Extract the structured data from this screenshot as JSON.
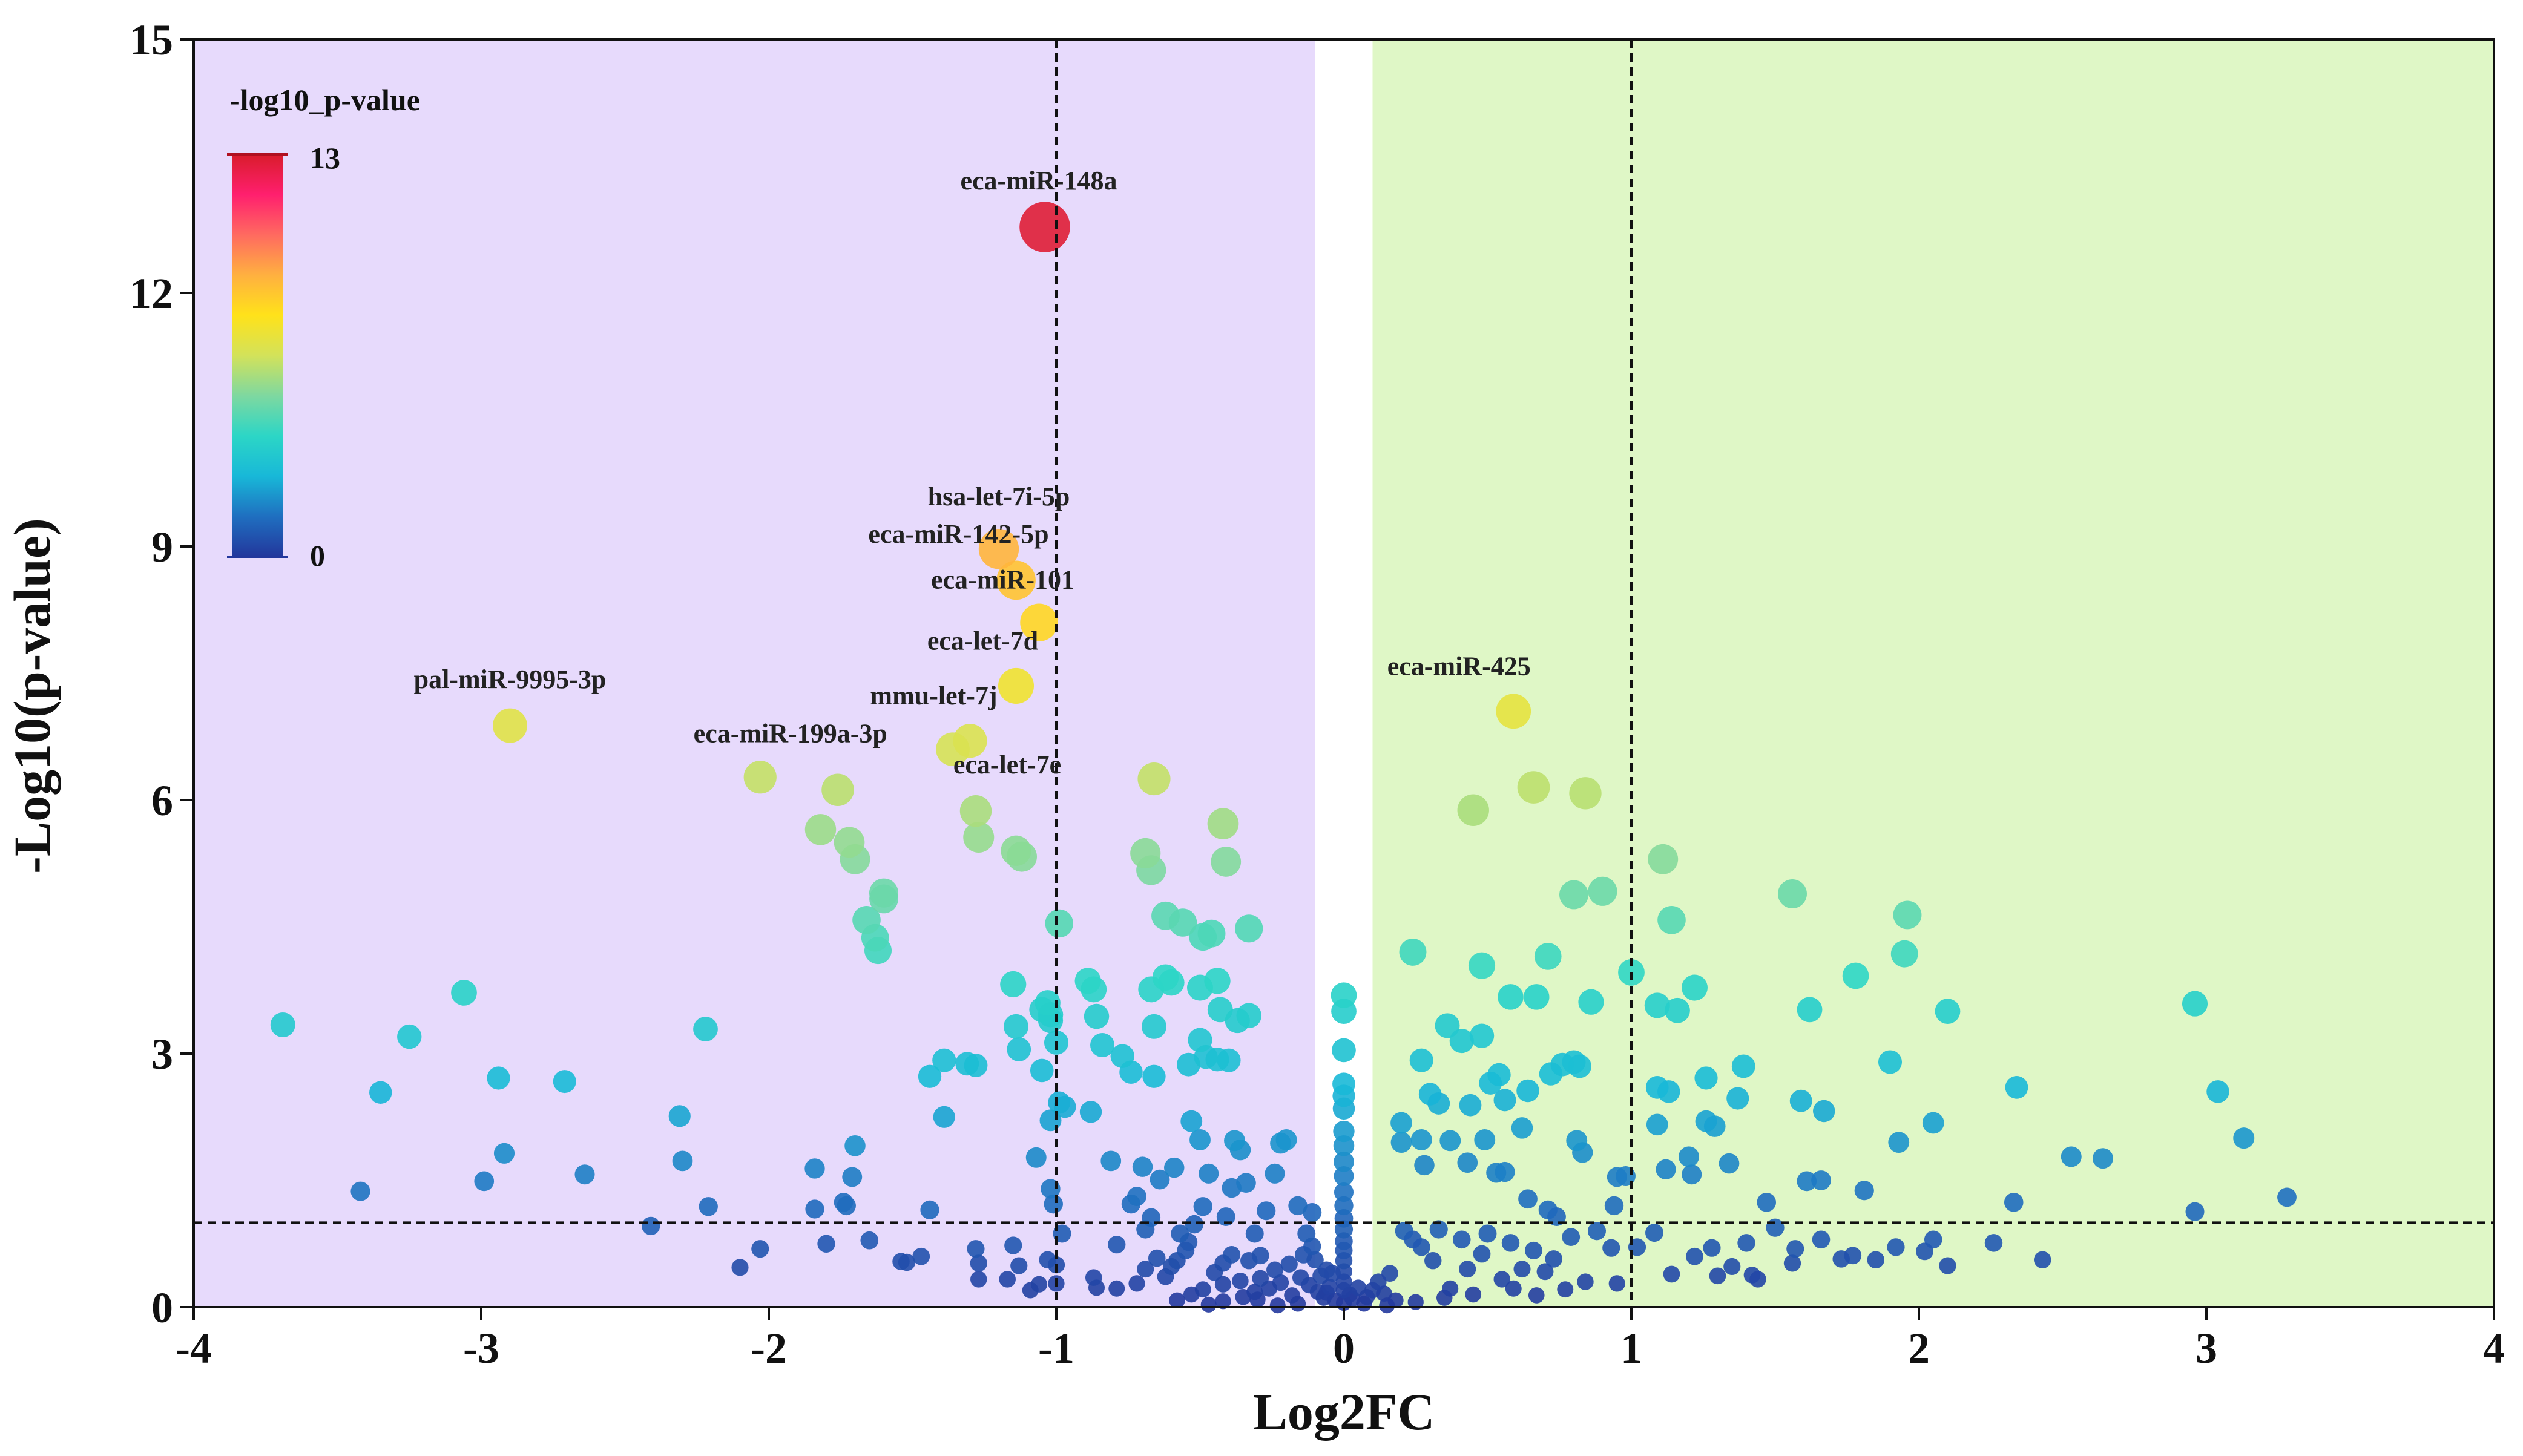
{
  "chart_data": {
    "type": "scatter",
    "title": "",
    "xlabel": "Log2FC",
    "ylabel": "-Log10(p-value)",
    "xlim": [
      -4,
      4
    ],
    "ylim": [
      0,
      15
    ],
    "xticks": [
      -4,
      -3,
      -2,
      -1,
      0,
      1,
      2,
      3,
      4
    ],
    "yticks": [
      0,
      3,
      6,
      9,
      12,
      15
    ],
    "xtick_labels": [
      "-4",
      "-3",
      "-2",
      "-1",
      "0",
      "1",
      "2",
      "3",
      "4"
    ],
    "ytick_labels": [
      "0",
      "3",
      "6",
      "9",
      "12",
      "15"
    ],
    "grid": false,
    "regions": [
      {
        "name": "down",
        "x_range": [
          -4,
          -0.1
        ],
        "color": "#e7dafc"
      },
      {
        "name": "up",
        "x_range": [
          0.1,
          4
        ],
        "color": "#dff7c6"
      }
    ],
    "threshold_lines": {
      "x": [
        -1,
        1
      ],
      "y": 1
    },
    "colorbar": {
      "title": "-log10_p-value",
      "min": 0,
      "max": 13,
      "min_label": "0",
      "max_label": "13",
      "colors": [
        "#23379c",
        "#1f6fc0",
        "#18b8d8",
        "#2cd6c6",
        "#7ed8a0",
        "#d3e25a",
        "#ffe21a",
        "#ffb040",
        "#ff6a60",
        "#ff1f6e",
        "#d91c2b"
      ]
    },
    "labeled_points": [
      {
        "label": "eca-miR-148a",
        "x": -1.04,
        "y": 12.78
      },
      {
        "label": "hsa-let-7i-5p",
        "x": -1.2,
        "y": 8.97
      },
      {
        "label": "eca-miR-142-5p",
        "x": -1.14,
        "y": 8.6
      },
      {
        "label": "eca-miR-101",
        "x": -1.06,
        "y": 8.1
      },
      {
        "label": "eca-let-7d",
        "x": -1.14,
        "y": 7.35
      },
      {
        "label": "mmu-let-7j",
        "x": -1.3,
        "y": 6.7
      },
      {
        "label": "eca-let-7e",
        "x": -1.36,
        "y": 6.6
      },
      {
        "label": "pal-miR-9995-3p",
        "x": -2.9,
        "y": 6.88
      },
      {
        "label": "eca-miR-199a-3p",
        "x": -2.03,
        "y": 6.27
      },
      {
        "label": "eca-miR-425",
        "x": 0.59,
        "y": 7.05
      }
    ],
    "points": [
      [
        -1.76,
        6.12
      ],
      [
        -1.82,
        5.65
      ],
      [
        -1.72,
        5.5
      ],
      [
        -1.7,
        5.3
      ],
      [
        -1.6,
        4.9
      ],
      [
        -1.6,
        4.83
      ],
      [
        -1.66,
        4.58
      ],
      [
        -1.63,
        4.37
      ],
      [
        -1.62,
        4.22
      ],
      [
        -1.28,
        5.87
      ],
      [
        -1.27,
        5.56
      ],
      [
        -1.14,
        5.4
      ],
      [
        -1.12,
        5.33
      ],
      [
        -0.99,
        4.54
      ],
      [
        -0.66,
        6.25
      ],
      [
        -0.42,
        5.72
      ],
      [
        -0.69,
        5.37
      ],
      [
        -0.67,
        5.17
      ],
      [
        -0.41,
        5.27
      ],
      [
        -0.62,
        4.63
      ],
      [
        -0.56,
        4.55
      ],
      [
        -0.49,
        4.38
      ],
      [
        -0.46,
        4.42
      ],
      [
        -0.33,
        4.48
      ],
      [
        0.45,
        5.88
      ],
      [
        0.66,
        6.15
      ],
      [
        0.84,
        6.08
      ],
      [
        1.11,
        5.3
      ],
      [
        0.8,
        4.88
      ],
      [
        0.9,
        4.92
      ],
      [
        1.14,
        4.58
      ],
      [
        1.56,
        4.89
      ],
      [
        1.96,
        4.64
      ],
      [
        0.24,
        4.2
      ],
      [
        0.48,
        4.04
      ],
      [
        0.71,
        4.15
      ],
      [
        1.95,
        4.18
      ],
      [
        -3.69,
        3.34
      ],
      [
        -3.06,
        3.72
      ],
      [
        -3.25,
        3.2
      ],
      [
        -3.35,
        2.54
      ],
      [
        -2.94,
        2.71
      ],
      [
        -2.71,
        2.67
      ],
      [
        -2.22,
        3.29
      ],
      [
        -2.92,
        1.82
      ],
      [
        -2.99,
        1.49
      ],
      [
        -2.64,
        1.57
      ],
      [
        -3.42,
        1.37
      ],
      [
        -2.31,
        2.26
      ],
      [
        -2.3,
        1.73
      ],
      [
        -2.41,
        0.96
      ],
      [
        -2.21,
        1.19
      ],
      [
        -1.84,
        1.64
      ],
      [
        -1.7,
        1.91
      ],
      [
        -1.71,
        1.54
      ],
      [
        -1.73,
        1.2
      ],
      [
        -1.84,
        1.16
      ],
      [
        -1.74,
        1.24
      ],
      [
        -1.44,
        2.73
      ],
      [
        -1.39,
        2.92
      ],
      [
        -1.39,
        2.25
      ],
      [
        -1.44,
        1.15
      ],
      [
        -1.54,
        0.54
      ],
      [
        -1.47,
        0.6
      ],
      [
        -1.65,
        0.79
      ],
      [
        -1.8,
        0.75
      ],
      [
        -2.03,
        0.69
      ],
      [
        -2.1,
        0.47
      ],
      [
        -1.52,
        0.53
      ],
      [
        -1.31,
        2.88
      ],
      [
        -1.28,
        2.86
      ],
      [
        -1.15,
        3.82
      ],
      [
        -1.14,
        3.32
      ],
      [
        -1.13,
        3.05
      ],
      [
        -1.05,
        3.52
      ],
      [
        -1.03,
        3.6
      ],
      [
        -1.02,
        3.46
      ],
      [
        -1.02,
        3.39
      ],
      [
        -1.0,
        3.13
      ],
      [
        -1.05,
        2.8
      ],
      [
        -0.89,
        3.86
      ],
      [
        -0.87,
        3.76
      ],
      [
        -0.86,
        3.44
      ],
      [
        -0.84,
        3.1
      ],
      [
        -0.99,
        2.42
      ],
      [
        -0.97,
        2.37
      ],
      [
        -0.88,
        2.31
      ],
      [
        -0.77,
        2.97
      ],
      [
        -0.74,
        2.78
      ],
      [
        -0.67,
        3.76
      ],
      [
        -0.66,
        3.32
      ],
      [
        -0.66,
        2.73
      ],
      [
        -0.62,
        3.9
      ],
      [
        -0.6,
        3.84
      ],
      [
        -0.5,
        3.78
      ],
      [
        -0.44,
        3.86
      ],
      [
        -0.43,
        3.52
      ],
      [
        -0.37,
        3.39
      ],
      [
        -0.33,
        3.45
      ],
      [
        -0.5,
        3.16
      ],
      [
        -0.48,
        2.96
      ],
      [
        -0.44,
        2.93
      ],
      [
        -0.4,
        2.92
      ],
      [
        -0.54,
        2.87
      ],
      [
        -1.02,
        2.21
      ],
      [
        -1.07,
        1.77
      ],
      [
        -1.02,
        1.4
      ],
      [
        -1.01,
        1.22
      ],
      [
        -1.15,
        0.73
      ],
      [
        -1.03,
        0.56
      ],
      [
        -1.0,
        0.5
      ],
      [
        -0.98,
        0.87
      ],
      [
        -1.13,
        0.49
      ],
      [
        -1.17,
        0.33
      ],
      [
        -1.27,
        0.52
      ],
      [
        -1.28,
        0.69
      ],
      [
        -1.27,
        0.33
      ],
      [
        -1.06,
        0.27
      ],
      [
        -1.09,
        0.2
      ],
      [
        -1.0,
        0.28
      ],
      [
        -0.87,
        0.35
      ],
      [
        -0.86,
        0.23
      ],
      [
        -0.79,
        0.22
      ],
      [
        -0.72,
        0.28
      ],
      [
        -0.69,
        0.45
      ],
      [
        -0.81,
        1.73
      ],
      [
        -0.72,
        1.31
      ],
      [
        -0.7,
        1.66
      ],
      [
        -0.67,
        1.06
      ],
      [
        -0.69,
        0.92
      ],
      [
        -0.65,
        0.58
      ],
      [
        -0.6,
        0.48
      ],
      [
        -0.54,
        0.77
      ],
      [
        -0.52,
        0.98
      ],
      [
        -0.49,
        1.19
      ],
      [
        -0.47,
        1.58
      ],
      [
        -0.41,
        1.07
      ],
      [
        -0.39,
        1.41
      ],
      [
        -0.34,
        1.47
      ],
      [
        -0.31,
        0.87
      ],
      [
        -0.29,
        0.61
      ],
      [
        -0.27,
        1.14
      ],
      [
        -0.24,
        1.58
      ],
      [
        -0.22,
        1.94
      ],
      [
        -0.2,
        1.98
      ],
      [
        -0.16,
        1.2
      ],
      [
        -0.11,
        1.12
      ],
      [
        -0.1,
        0.56
      ],
      [
        -0.13,
        0.87
      ],
      [
        -0.06,
        0.44
      ],
      [
        -0.04,
        0.4
      ],
      [
        -0.53,
        2.2
      ],
      [
        -0.5,
        1.98
      ],
      [
        -0.38,
        1.97
      ],
      [
        -0.36,
        1.86
      ],
      [
        -0.59,
        1.65
      ],
      [
        -0.64,
        1.51
      ],
      [
        -0.74,
        1.22
      ],
      [
        -0.79,
        0.74
      ],
      [
        -0.62,
        0.36
      ],
      [
        -0.55,
        0.67
      ],
      [
        -0.45,
        0.41
      ],
      [
        -0.42,
        0.52
      ],
      [
        -0.42,
        0.27
      ],
      [
        -0.36,
        0.31
      ],
      [
        -0.31,
        0.18
      ],
      [
        -0.26,
        0.22
      ],
      [
        -0.22,
        0.29
      ],
      [
        -0.18,
        0.14
      ],
      [
        -0.15,
        0.35
      ],
      [
        -0.12,
        0.26
      ],
      [
        -0.09,
        0.18
      ],
      [
        -0.07,
        0.11
      ],
      [
        -0.05,
        0.24
      ],
      [
        -0.03,
        0.08
      ],
      [
        0.0,
        0.05
      ],
      [
        0.02,
        0.15
      ],
      [
        0.03,
        0.1
      ],
      [
        0.05,
        0.23
      ],
      [
        0.07,
        0.04
      ],
      [
        0.08,
        0.12
      ],
      [
        0.1,
        0.2
      ],
      [
        0.12,
        0.3
      ],
      [
        0.14,
        0.16
      ],
      [
        0.16,
        0.4
      ],
      [
        0.18,
        0.08
      ],
      [
        -0.57,
        0.87
      ],
      [
        -0.58,
        0.55
      ],
      [
        -0.49,
        0.21
      ],
      [
        -0.39,
        0.62
      ],
      [
        -0.33,
        0.55
      ],
      [
        -0.29,
        0.34
      ],
      [
        -0.24,
        0.44
      ],
      [
        -0.19,
        0.51
      ],
      [
        -0.14,
        0.62
      ],
      [
        -0.11,
        0.72
      ],
      [
        -0.08,
        0.37
      ],
      [
        -0.06,
        0.17
      ],
      [
        0.0,
        3.69
      ],
      [
        0.0,
        3.5
      ],
      [
        0.0,
        3.04
      ],
      [
        0.0,
        2.64
      ],
      [
        0.0,
        2.5
      ],
      [
        0.0,
        2.35
      ],
      [
        0.0,
        2.08
      ],
      [
        0.0,
        1.91
      ],
      [
        0.0,
        1.72
      ],
      [
        0.0,
        1.55
      ],
      [
        0.0,
        1.36
      ],
      [
        0.0,
        1.2
      ],
      [
        0.0,
        1.05
      ],
      [
        0.0,
        0.92
      ],
      [
        0.0,
        0.78
      ],
      [
        0.0,
        0.67
      ],
      [
        0.0,
        0.55
      ],
      [
        0.0,
        0.42
      ],
      [
        0.0,
        0.3
      ],
      [
        0.0,
        0.2
      ],
      [
        0.27,
        2.92
      ],
      [
        0.3,
        2.52
      ],
      [
        0.36,
        3.33
      ],
      [
        0.33,
        2.41
      ],
      [
        0.41,
        3.15
      ],
      [
        0.44,
        2.39
      ],
      [
        0.48,
        3.21
      ],
      [
        0.51,
        2.65
      ],
      [
        0.54,
        2.75
      ],
      [
        0.56,
        2.45
      ],
      [
        0.58,
        3.67
      ],
      [
        0.62,
        2.12
      ],
      [
        0.64,
        2.56
      ],
      [
        0.67,
        3.67
      ],
      [
        0.72,
        2.76
      ],
      [
        0.76,
        2.87
      ],
      [
        0.8,
        2.9
      ],
      [
        0.82,
        2.85
      ],
      [
        0.86,
        3.61
      ],
      [
        0.2,
        2.18
      ],
      [
        0.2,
        1.95
      ],
      [
        0.27,
        1.98
      ],
      [
        0.28,
        1.68
      ],
      [
        0.37,
        1.97
      ],
      [
        0.43,
        1.71
      ],
      [
        0.49,
        1.98
      ],
      [
        0.53,
        1.59
      ],
      [
        0.56,
        1.6
      ],
      [
        0.64,
        1.28
      ],
      [
        0.71,
        1.15
      ],
      [
        0.74,
        1.07
      ],
      [
        0.81,
        1.97
      ],
      [
        0.83,
        1.83
      ],
      [
        0.95,
        1.54
      ],
      [
        0.94,
        1.2
      ],
      [
        0.98,
        1.55
      ],
      [
        1.09,
        2.6
      ],
      [
        1.09,
        2.16
      ],
      [
        1.13,
        2.55
      ],
      [
        1.12,
        1.63
      ],
      [
        1.2,
        1.78
      ],
      [
        1.21,
        1.57
      ],
      [
        1.22,
        3.78
      ],
      [
        1.26,
        2.71
      ],
      [
        1.26,
        2.2
      ],
      [
        1.29,
        2.14
      ],
      [
        1.34,
        1.7
      ],
      [
        1.39,
        2.85
      ],
      [
        1.37,
        2.47
      ],
      [
        1.47,
        1.24
      ],
      [
        1.59,
        2.44
      ],
      [
        1.61,
        1.49
      ],
      [
        1.66,
        1.5
      ],
      [
        1.67,
        2.32
      ],
      [
        1.78,
        3.92
      ],
      [
        1.81,
        1.38
      ],
      [
        1.9,
        2.9
      ],
      [
        1.93,
        1.95
      ],
      [
        2.05,
        2.18
      ],
      [
        2.1,
        3.5
      ],
      [
        2.34,
        2.6
      ],
      [
        2.33,
        1.24
      ],
      [
        2.53,
        1.78
      ],
      [
        2.64,
        1.76
      ],
      [
        2.96,
        3.59
      ],
      [
        3.04,
        2.55
      ],
      [
        3.13,
        2.0
      ],
      [
        3.28,
        1.3
      ],
      [
        2.96,
        1.13
      ],
      [
        1.0,
        3.96
      ],
      [
        1.09,
        3.57
      ],
      [
        1.16,
        3.51
      ],
      [
        1.62,
        3.52
      ],
      [
        1.02,
        0.71
      ],
      [
        1.08,
        0.88
      ],
      [
        1.14,
        0.39
      ],
      [
        1.22,
        0.6
      ],
      [
        1.28,
        0.7
      ],
      [
        1.35,
        0.48
      ],
      [
        1.4,
        0.76
      ],
      [
        1.44,
        0.33
      ],
      [
        1.5,
        0.94
      ],
      [
        1.56,
        0.52
      ],
      [
        1.66,
        0.8
      ],
      [
        1.73,
        0.57
      ],
      [
        1.85,
        0.56
      ],
      [
        1.92,
        0.71
      ],
      [
        2.02,
        0.66
      ],
      [
        2.1,
        0.49
      ],
      [
        2.26,
        0.76
      ],
      [
        2.43,
        0.56
      ],
      [
        1.57,
        0.69
      ],
      [
        1.77,
        0.61
      ],
      [
        2.05,
        0.8
      ],
      [
        1.3,
        0.37
      ],
      [
        1.42,
        0.38
      ],
      [
        0.95,
        0.28
      ],
      [
        0.84,
        0.3
      ],
      [
        0.77,
        0.21
      ],
      [
        0.7,
        0.42
      ],
      [
        0.62,
        0.45
      ],
      [
        0.55,
        0.33
      ],
      [
        0.48,
        0.63
      ],
      [
        0.43,
        0.45
      ],
      [
        0.37,
        0.22
      ],
      [
        0.31,
        0.55
      ],
      [
        0.27,
        0.71
      ],
      [
        0.24,
        0.8
      ],
      [
        0.21,
        0.9
      ],
      [
        0.33,
        0.92
      ],
      [
        0.41,
        0.8
      ],
      [
        0.5,
        0.87
      ],
      [
        0.58,
        0.76
      ],
      [
        0.66,
        0.67
      ],
      [
        0.73,
        0.57
      ],
      [
        0.79,
        0.83
      ],
      [
        0.88,
        0.9
      ],
      [
        0.93,
        0.7
      ],
      [
        0.67,
        0.14
      ],
      [
        0.59,
        0.22
      ],
      [
        0.45,
        0.15
      ],
      [
        0.35,
        0.11
      ],
      [
        0.25,
        0.06
      ],
      [
        0.15,
        0.02
      ],
      [
        -0.16,
        0.04
      ],
      [
        -0.23,
        0.02
      ],
      [
        -0.3,
        0.09
      ],
      [
        -0.35,
        0.12
      ],
      [
        -0.42,
        0.07
      ],
      [
        -0.47,
        0.03
      ],
      [
        -0.53,
        0.15
      ],
      [
        -0.58,
        0.08
      ]
    ]
  }
}
